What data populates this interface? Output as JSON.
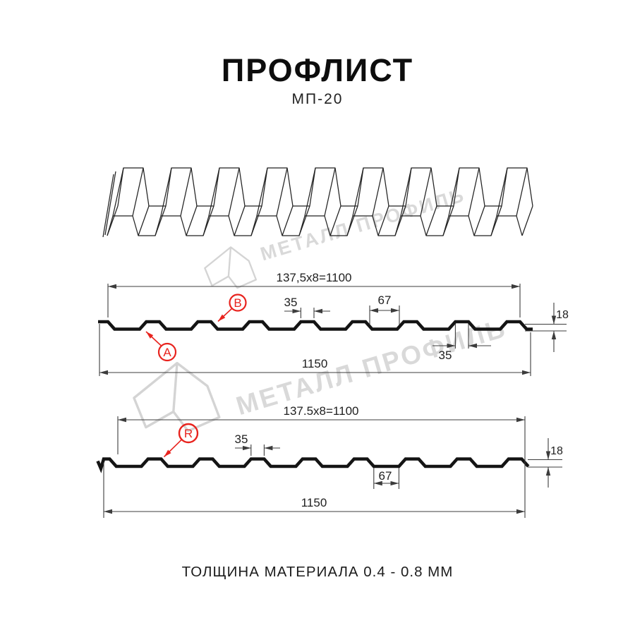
{
  "title": "ПРОФЛИСТ",
  "subtitle": "МП-20",
  "watermark": {
    "text": "МЕТАЛЛ ПРОФИЛЬ"
  },
  "thickness_note": "ТОЛЩИНА МАТЕРИАЛА 0.4 - 0.8 ММ",
  "colors": {
    "line": "#141414",
    "dim": "#3c3c3c",
    "accent_red": "#e8231e",
    "watermark": "#d9d9d9"
  },
  "section_a": {
    "span_label": "137,5x8=1100",
    "width_label": "1150",
    "rib_width_top_label": "35",
    "rib_width_bottom_label": "35",
    "flat_width_label": "67",
    "height_label": "18",
    "point_labels": {
      "a": "A",
      "b": "B"
    }
  },
  "section_r": {
    "span_label": "137.5x8=1100",
    "width_label": "1150",
    "rib_width_label": "35",
    "flat_width_label": "67",
    "height_label": "18",
    "point_labels": {
      "r": "R"
    }
  }
}
